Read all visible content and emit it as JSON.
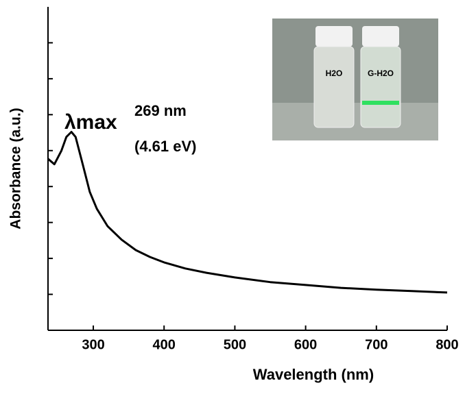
{
  "chart_data": {
    "type": "line",
    "xlabel": "Wavelength (nm)",
    "ylabel": "Absorbance (a.u.)",
    "x": [
      236,
      245,
      255,
      262,
      269,
      275,
      285,
      295,
      305,
      320,
      340,
      360,
      380,
      400,
      430,
      460,
      500,
      550,
      600,
      650,
      700,
      750,
      800
    ],
    "values": [
      4.77,
      4.62,
      5.0,
      5.38,
      5.52,
      5.38,
      4.62,
      3.85,
      3.38,
      2.9,
      2.52,
      2.23,
      2.04,
      1.89,
      1.72,
      1.6,
      1.47,
      1.34,
      1.26,
      1.18,
      1.13,
      1.09,
      1.05
    ],
    "color": "#000000",
    "xlim": [
      236,
      800
    ],
    "xticks": [
      300,
      400,
      500,
      600,
      700,
      800
    ],
    "ylim": [
      0,
      9
    ],
    "yticks": [
      1,
      2,
      3,
      4,
      5,
      6,
      7,
      8
    ],
    "ytick_labels": false,
    "annotations": [
      "λmax",
      "269 nm",
      "(4.61 eV)"
    ],
    "inset_labels": [
      "H2O",
      "G-H2O"
    ]
  }
}
